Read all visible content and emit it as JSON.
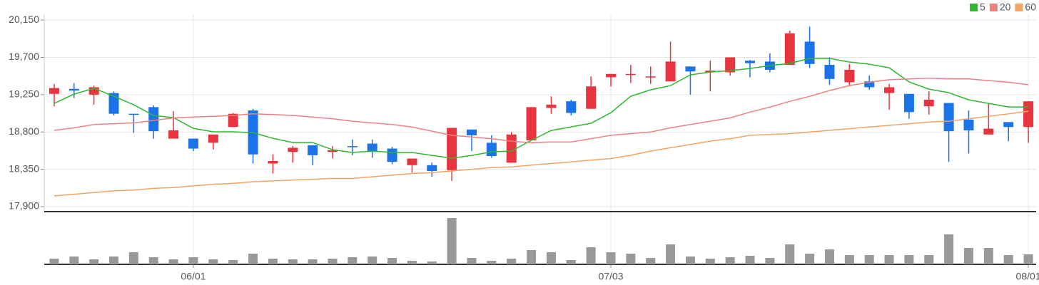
{
  "chart_data": {
    "type": "candlestick",
    "categories": [
      null,
      null,
      null,
      null,
      null,
      null,
      null,
      "06/01",
      null,
      null,
      null,
      null,
      null,
      null,
      null,
      null,
      null,
      null,
      null,
      null,
      null,
      null,
      null,
      null,
      null,
      null,
      null,
      null,
      "07/03",
      null,
      null,
      null,
      null,
      null,
      null,
      null,
      null,
      null,
      null,
      null,
      null,
      null,
      null,
      null,
      null,
      null,
      null,
      null,
      null,
      "08/01"
    ],
    "open": [
      19260,
      19320,
      19250,
      19270,
      19020,
      19100,
      18720,
      18720,
      18670,
      18860,
      19060,
      18420,
      18560,
      18640,
      18560,
      18630,
      18660,
      18600,
      18400,
      18400,
      18340,
      18830,
      18670,
      18430,
      18700,
      19090,
      19170,
      19080,
      19460,
      19490,
      19460,
      19410,
      19590,
      19520,
      19520,
      19660,
      19650,
      19610,
      19890,
      19610,
      19400,
      19410,
      19270,
      19260,
      19110,
      19150,
      18950,
      18770,
      18920,
      18860
    ],
    "close": [
      19330,
      19300,
      19340,
      19020,
      19010,
      18810,
      18820,
      18600,
      18770,
      19020,
      18530,
      18450,
      18610,
      18520,
      18580,
      18620,
      18560,
      18440,
      18480,
      18330,
      18850,
      18760,
      18510,
      18770,
      19100,
      19130,
      19030,
      19350,
      19500,
      19500,
      19470,
      19650,
      19530,
      19540,
      19700,
      19630,
      19550,
      19990,
      19620,
      19440,
      19550,
      19340,
      19340,
      19040,
      19190,
      18810,
      18820,
      18840,
      18860,
      19170
    ],
    "high": [
      19380,
      19390,
      19360,
      19290,
      19020,
      19120,
      19050,
      18720,
      18770,
      19030,
      19080,
      18530,
      18630,
      18640,
      18630,
      18710,
      18710,
      18620,
      18480,
      18430,
      18850,
      18830,
      18760,
      18800,
      19100,
      19230,
      19190,
      19470,
      19500,
      19610,
      19590,
      19890,
      19590,
      19660,
      19700,
      19670,
      19750,
      20020,
      20070,
      19700,
      19620,
      19480,
      19380,
      19260,
      19290,
      19150,
      19060,
      19150,
      18920,
      19170
    ],
    "low": [
      19110,
      19210,
      19130,
      19000,
      18790,
      18720,
      18720,
      18570,
      18590,
      18860,
      18420,
      18300,
      18430,
      18400,
      18480,
      18520,
      18490,
      18410,
      18310,
      18260,
      18210,
      18570,
      18490,
      18430,
      18700,
      19020,
      19000,
      19080,
      19350,
      19390,
      19380,
      19410,
      19250,
      19290,
      19480,
      19460,
      19520,
      19610,
      19570,
      19370,
      19350,
      19310,
      19070,
      18960,
      19010,
      18440,
      18540,
      18770,
      18690,
      18670
    ],
    "up_color": "#e8343f",
    "down_color": "#1a73e8",
    "series": [
      {
        "name": "5",
        "color": "#2db82d",
        "values": [
          19145,
          19257,
          19326,
          19231,
          19128,
          18999,
          18973,
          18844,
          18802,
          18802,
          18793,
          18724,
          18673,
          18673,
          18587,
          18553,
          18570,
          18553,
          18553,
          18518,
          18484,
          18518,
          18561,
          18570,
          18699,
          18819,
          18862,
          18905,
          19033,
          19231,
          19308,
          19360,
          19489,
          19523,
          19540,
          19566,
          19601,
          19627,
          19687,
          19687,
          19644,
          19618,
          19575,
          19404,
          19317,
          19274,
          19188,
          19145,
          19102,
          19102
        ]
      },
      {
        "name": "20",
        "color": "#f08080",
        "values": [
          18820,
          18850,
          18890,
          18900,
          18910,
          18940,
          18970,
          18980,
          18990,
          19000,
          19020,
          19010,
          19000,
          18980,
          18960,
          18930,
          18910,
          18890,
          18860,
          18810,
          18760,
          18740,
          18720,
          18690,
          18670,
          18680,
          18680,
          18720,
          18760,
          18780,
          18800,
          18850,
          18890,
          18930,
          18970,
          19040,
          19100,
          19170,
          19230,
          19300,
          19360,
          19400,
          19430,
          19440,
          19450,
          19440,
          19440,
          19420,
          19400,
          19370
        ]
      },
      {
        "name": "60",
        "color": "#f4a460",
        "values": [
          18030,
          18050,
          18070,
          18090,
          18100,
          18120,
          18130,
          18150,
          18170,
          18180,
          18200,
          18210,
          18220,
          18230,
          18240,
          18240,
          18260,
          18280,
          18300,
          18310,
          18330,
          18350,
          18370,
          18380,
          18400,
          18420,
          18440,
          18460,
          18480,
          18520,
          18570,
          18610,
          18650,
          18690,
          18720,
          18760,
          18770,
          18780,
          18800,
          18820,
          18840,
          18860,
          18880,
          18900,
          18920,
          18930,
          18960,
          18990,
          19020,
          19050
        ]
      }
    ],
    "ylim": [
      17840,
      20220
    ],
    "yticks": [
      {
        "value": 17900,
        "label": "17,900"
      },
      {
        "value": 18350,
        "label": "18,350"
      },
      {
        "value": 18800,
        "label": "18,800"
      },
      {
        "value": 19250,
        "label": "19,250"
      },
      {
        "value": 19700,
        "label": "19,700"
      },
      {
        "value": 20150,
        "label": "20,150"
      }
    ],
    "grid": true,
    "legend": "top-right",
    "volume": {
      "color": "#999999",
      "ylim": [
        0,
        73
      ],
      "values": [
        8,
        11,
        7,
        11,
        17,
        10,
        7,
        10,
        7,
        6,
        15,
        8,
        7,
        7,
        8,
        10,
        11,
        9,
        5,
        4,
        65,
        9,
        5,
        8,
        20,
        17,
        6,
        24,
        17,
        15,
        9,
        28,
        11,
        8,
        10,
        12,
        9,
        28,
        15,
        21,
        13,
        13,
        13,
        13,
        13,
        42,
        23,
        23,
        13,
        14
      ]
    }
  }
}
